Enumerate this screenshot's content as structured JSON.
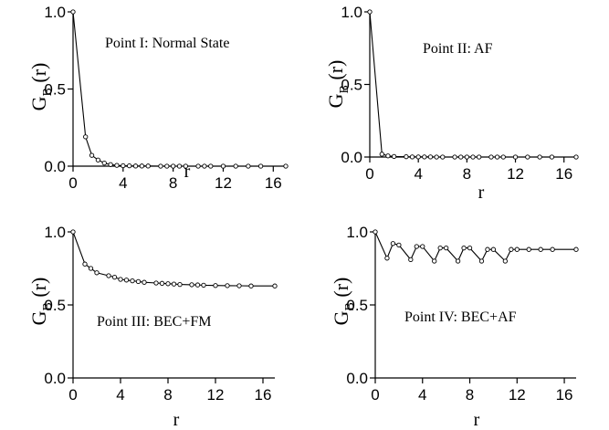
{
  "chart_data": [
    {
      "type": "line",
      "title": "Point I: Normal State",
      "ylabel_main": "G",
      "ylabel_sub": "B",
      "ylabel_tail": " (r)",
      "xlabel": "r",
      "xlim": [
        0,
        17
      ],
      "ylim": [
        0,
        1
      ],
      "xticks": [
        0,
        4,
        8,
        12,
        16
      ],
      "yticks": [
        0.0,
        0.5,
        1.0
      ],
      "ytick_labels": [
        "0.0",
        "0.5",
        "1.0"
      ],
      "series": [
        {
          "x": [
            0,
            1,
            1.5,
            2,
            2.5,
            3,
            3.5,
            4,
            4.5,
            5,
            5.5,
            6,
            7,
            7.5,
            8,
            8.5,
            9,
            10,
            10.5,
            11,
            12,
            13,
            14,
            15,
            17
          ],
          "y": [
            1.0,
            0.19,
            0.07,
            0.04,
            0.02,
            0.01,
            0.005,
            0.003,
            0.002,
            0.001,
            0.001,
            0.001,
            0,
            0,
            0,
            0,
            0,
            0,
            0,
            0,
            0,
            0,
            0,
            0,
            0
          ]
        }
      ]
    },
    {
      "type": "line",
      "title": "Point II: AF",
      "ylabel_main": "G",
      "ylabel_sub": "B",
      "ylabel_tail": " (r)",
      "xlabel": "r",
      "xlim": [
        0,
        17
      ],
      "ylim": [
        0,
        1
      ],
      "xticks": [
        0,
        4,
        8,
        12,
        16
      ],
      "yticks": [
        0.0,
        0.5,
        1.0
      ],
      "ytick_labels": [
        "0.0",
        "0.5",
        "1.0"
      ],
      "series": [
        {
          "x": [
            0,
            1,
            1.5,
            2,
            3,
            3.5,
            4,
            4.5,
            5,
            5.5,
            6,
            7,
            7.5,
            8,
            8.5,
            9,
            10,
            10.5,
            11,
            12,
            13,
            14,
            15,
            17
          ],
          "y": [
            1.0,
            0.02,
            0.008,
            0.004,
            0.002,
            0.001,
            0.001,
            0.001,
            0.001,
            0,
            0,
            0,
            0,
            0,
            0,
            0,
            0,
            0,
            0,
            0,
            0,
            0,
            0,
            0
          ]
        }
      ]
    },
    {
      "type": "line",
      "title": "Point III: BEC+FM",
      "ylabel_main": "G",
      "ylabel_sub": "B",
      "ylabel_tail": " (r)",
      "xlabel": "r",
      "xlim": [
        0,
        17
      ],
      "ylim": [
        0,
        1
      ],
      "xticks": [
        0,
        4,
        8,
        12,
        16
      ],
      "yticks": [
        0.0,
        0.5,
        1.0
      ],
      "ytick_labels": [
        "0.0",
        "0.5",
        "1.0"
      ],
      "series": [
        {
          "x": [
            0,
            1,
            1.5,
            2,
            3,
            3.5,
            4,
            4.5,
            5,
            5.5,
            6,
            7,
            7.5,
            8,
            8.5,
            9,
            10,
            10.5,
            11,
            12,
            13,
            14,
            15,
            17
          ],
          "y": [
            1.0,
            0.78,
            0.75,
            0.72,
            0.7,
            0.69,
            0.675,
            0.67,
            0.665,
            0.66,
            0.655,
            0.65,
            0.648,
            0.645,
            0.643,
            0.64,
            0.638,
            0.637,
            0.635,
            0.633,
            0.632,
            0.631,
            0.63,
            0.63
          ]
        }
      ]
    },
    {
      "type": "line",
      "title": "Point IV: BEC+AF",
      "ylabel_main": "G",
      "ylabel_sub": "B",
      "ylabel_tail": " (r)",
      "xlabel": "r",
      "xlim": [
        0,
        17
      ],
      "ylim": [
        0,
        1
      ],
      "xticks": [
        0,
        4,
        8,
        12,
        16
      ],
      "yticks": [
        0.0,
        0.5,
        1.0
      ],
      "ytick_labels": [
        "0.0",
        "0.5",
        "1.0"
      ],
      "series": [
        {
          "x": [
            0,
            1,
            1.5,
            2,
            3,
            3.5,
            4,
            5,
            5.5,
            6,
            7,
            7.5,
            8,
            9,
            9.5,
            10,
            11,
            11.5,
            12,
            13,
            14,
            15,
            17
          ],
          "y": [
            1.0,
            0.82,
            0.92,
            0.91,
            0.81,
            0.9,
            0.9,
            0.8,
            0.89,
            0.89,
            0.8,
            0.89,
            0.89,
            0.8,
            0.88,
            0.88,
            0.8,
            0.88,
            0.88,
            0.88,
            0.88,
            0.88,
            0.88
          ]
        }
      ]
    }
  ]
}
